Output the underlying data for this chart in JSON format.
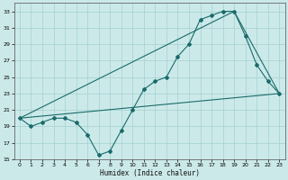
{
  "xlabel": "Humidex (Indice chaleur)",
  "xlim": [
    -0.5,
    23.5
  ],
  "ylim": [
    15,
    34
  ],
  "yticks": [
    15,
    17,
    19,
    21,
    23,
    25,
    27,
    29,
    31,
    33
  ],
  "xticks": [
    0,
    1,
    2,
    3,
    4,
    5,
    6,
    7,
    8,
    9,
    10,
    11,
    12,
    13,
    14,
    15,
    16,
    17,
    18,
    19,
    20,
    21,
    22,
    23
  ],
  "bg_color": "#cce9e9",
  "grid_color": "#aad4d4",
  "line_color": "#1a6b6b",
  "line1_x": [
    0,
    1,
    2,
    3,
    4,
    5,
    6,
    7,
    8,
    9,
    10,
    11,
    12,
    13,
    14,
    15,
    16,
    17,
    18,
    19,
    20,
    21,
    22,
    23
  ],
  "line1_y": [
    20,
    19,
    19.5,
    20,
    20,
    19.5,
    18,
    15.5,
    16,
    18.5,
    21,
    23.5,
    24.5,
    25,
    27.5,
    29,
    32,
    32.5,
    33,
    33,
    30,
    26.5,
    24.5,
    23
  ],
  "line2_x": [
    0,
    23
  ],
  "line2_y": [
    20,
    23
  ],
  "line3_x": [
    0,
    19,
    23
  ],
  "line3_y": [
    20,
    33,
    23
  ]
}
